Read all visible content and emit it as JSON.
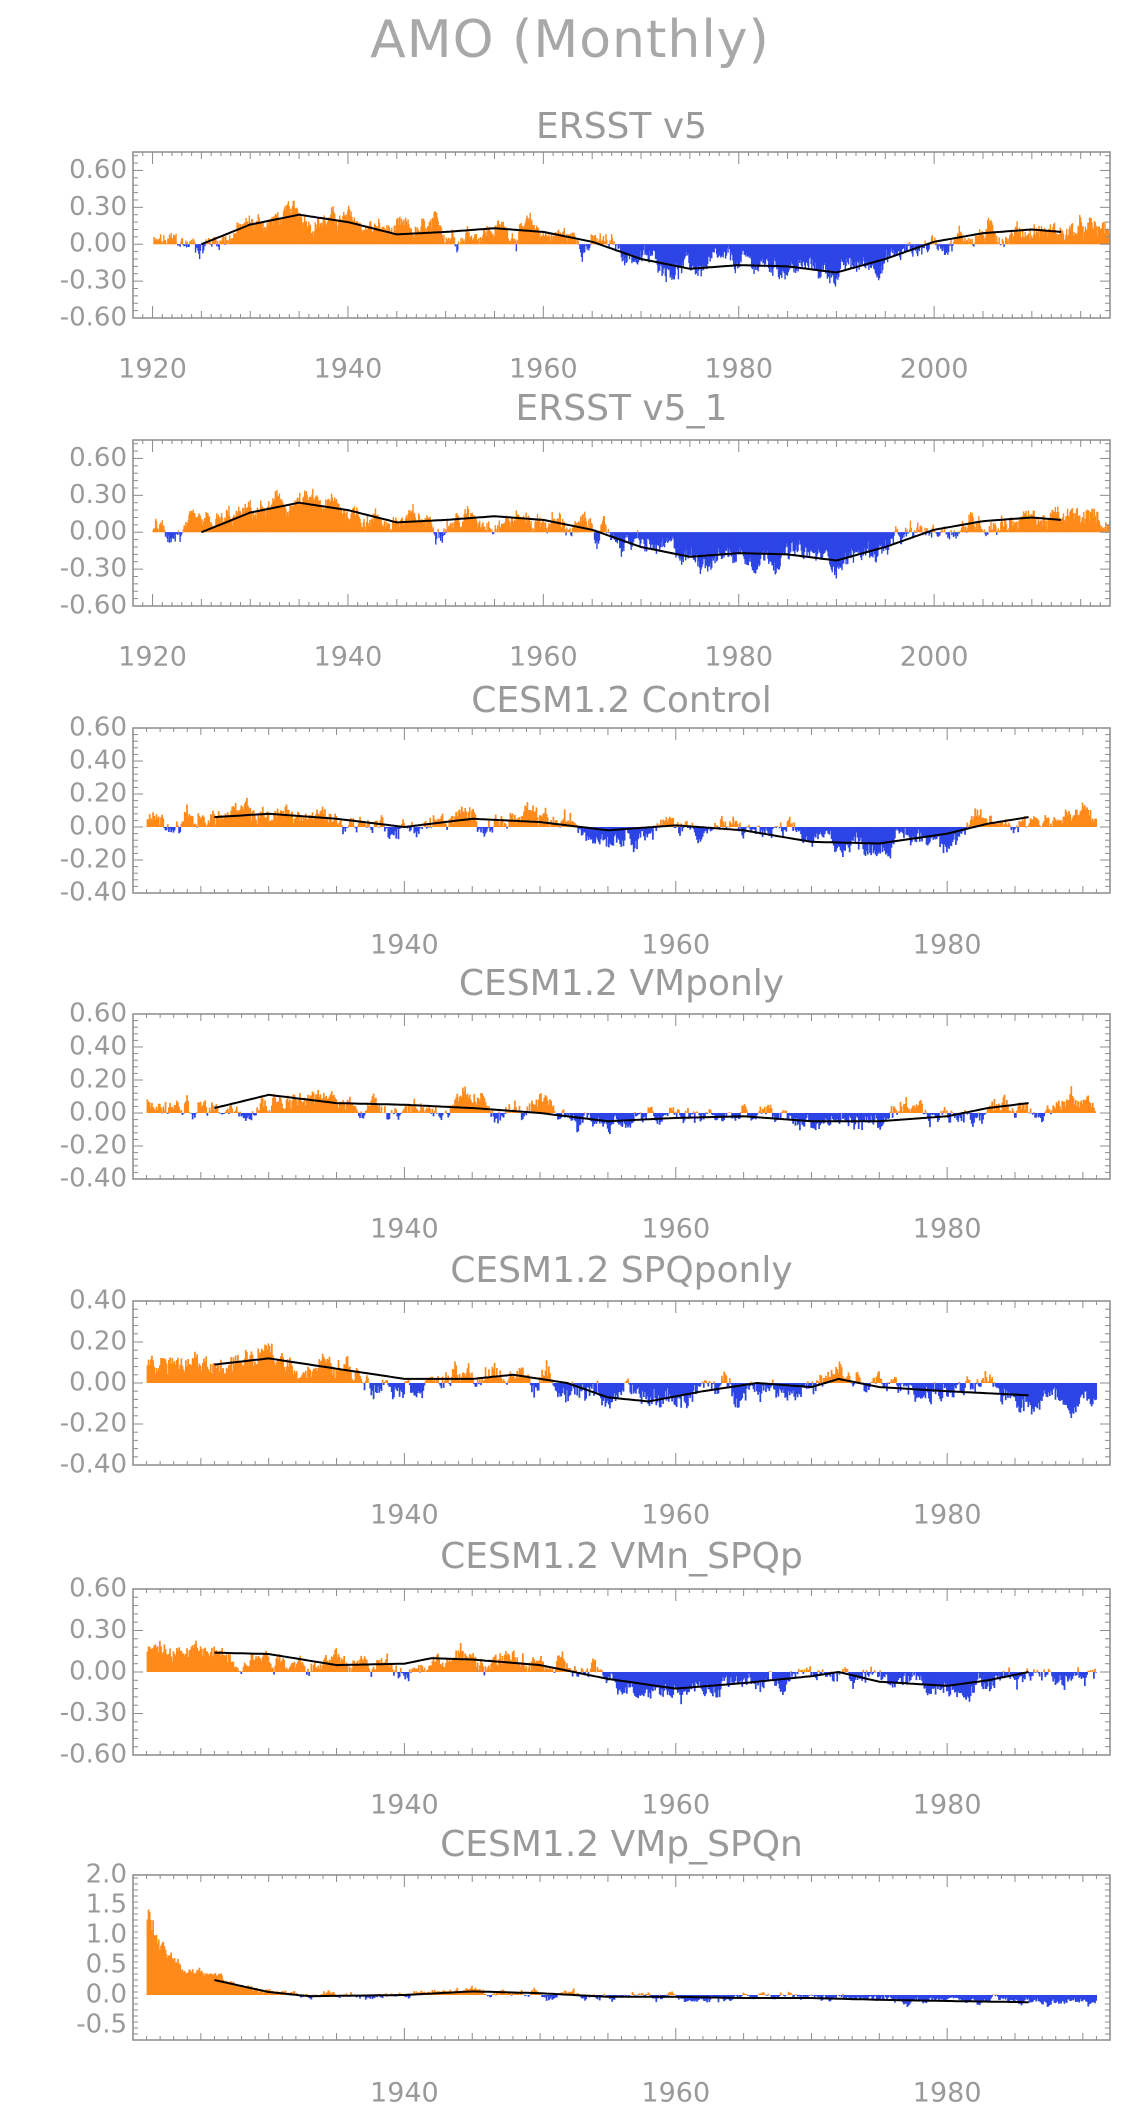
{
  "figure": {
    "title": "AMO (Monthly)"
  },
  "colors": {
    "positive": "#ff8a1a",
    "negative": "#2d45e6",
    "smooth": "#000000",
    "frame": "#8c8c8c",
    "text": "#9a9a9a"
  },
  "chart_data": [
    {
      "type": "bar",
      "title": "ERSST v5",
      "xlim": [
        1918,
        2018
      ],
      "ylim": [
        -0.6,
        0.75
      ],
      "yticks": [
        -0.6,
        -0.3,
        0.0,
        0.3,
        0.6
      ],
      "ytick_labels": [
        "-0.60",
        "-0.30",
        "0.00",
        "0.30",
        "0.60"
      ],
      "xticks": [
        1920,
        1940,
        1960,
        1980,
        2000
      ],
      "xtick_labels": [
        "1920",
        "1940",
        "1960",
        "1980",
        "2000"
      ],
      "series_start": 1920,
      "series_end": 2018,
      "smooth_range": [
        1925,
        2013
      ],
      "smooth": [
        [
          1925,
          0.0
        ],
        [
          1930,
          0.16
        ],
        [
          1935,
          0.24
        ],
        [
          1940,
          0.18
        ],
        [
          1945,
          0.08
        ],
        [
          1950,
          0.1
        ],
        [
          1955,
          0.13
        ],
        [
          1960,
          0.1
        ],
        [
          1965,
          0.02
        ],
        [
          1970,
          -0.12
        ],
        [
          1975,
          -0.2
        ],
        [
          1980,
          -0.17
        ],
        [
          1985,
          -0.18
        ],
        [
          1990,
          -0.23
        ],
        [
          1995,
          -0.12
        ],
        [
          2000,
          0.02
        ],
        [
          2005,
          0.09
        ],
        [
          2010,
          0.12
        ],
        [
          2013,
          0.1
        ]
      ],
      "noise": 0.16
    },
    {
      "type": "bar",
      "title": "ERSST v5_1",
      "xlim": [
        1918,
        2018
      ],
      "ylim": [
        -0.6,
        0.75
      ],
      "yticks": [
        -0.6,
        -0.3,
        0.0,
        0.3,
        0.6
      ],
      "ytick_labels": [
        "-0.60",
        "-0.30",
        "0.00",
        "0.30",
        "0.60"
      ],
      "xticks": [
        1920,
        1940,
        1960,
        1980,
        2000
      ],
      "xtick_labels": [
        "1920",
        "1940",
        "1960",
        "1980",
        "2000"
      ],
      "series_start": 1920,
      "series_end": 2018,
      "smooth_range": [
        1925,
        2013
      ],
      "smooth": [
        [
          1925,
          0.0
        ],
        [
          1930,
          0.16
        ],
        [
          1935,
          0.24
        ],
        [
          1940,
          0.18
        ],
        [
          1945,
          0.08
        ],
        [
          1950,
          0.1
        ],
        [
          1955,
          0.13
        ],
        [
          1960,
          0.1
        ],
        [
          1965,
          0.02
        ],
        [
          1970,
          -0.12
        ],
        [
          1975,
          -0.2
        ],
        [
          1980,
          -0.17
        ],
        [
          1985,
          -0.18
        ],
        [
          1990,
          -0.23
        ],
        [
          1995,
          -0.12
        ],
        [
          2000,
          0.02
        ],
        [
          2005,
          0.09
        ],
        [
          2010,
          0.12
        ],
        [
          2013,
          0.1
        ]
      ],
      "noise": 0.16
    },
    {
      "type": "bar",
      "title": "CESM1.2 Control",
      "xlim": [
        1920,
        1992
      ],
      "ylim": [
        -0.4,
        0.6
      ],
      "yticks": [
        -0.4,
        -0.2,
        0.0,
        0.2,
        0.4,
        0.6
      ],
      "ytick_labels": [
        "-0.40",
        "-0.20",
        "0.00",
        "0.20",
        "0.40",
        "0.60"
      ],
      "xticks": [
        1940,
        1960,
        1980
      ],
      "xtick_labels": [
        "1940",
        "1960",
        "1980"
      ],
      "series_start": 1921,
      "series_end": 1991,
      "smooth_range": [
        1926,
        1986
      ],
      "smooth": [
        [
          1926,
          0.06
        ],
        [
          1930,
          0.08
        ],
        [
          1935,
          0.05
        ],
        [
          1940,
          0.0
        ],
        [
          1945,
          0.05
        ],
        [
          1950,
          0.03
        ],
        [
          1955,
          -0.02
        ],
        [
          1960,
          0.01
        ],
        [
          1965,
          -0.02
        ],
        [
          1970,
          -0.09
        ],
        [
          1975,
          -0.1
        ],
        [
          1980,
          -0.04
        ],
        [
          1983,
          0.02
        ],
        [
          1986,
          0.06
        ]
      ],
      "noise": 0.12
    },
    {
      "type": "bar",
      "title": "CESM1.2 VMponly",
      "xlim": [
        1920,
        1992
      ],
      "ylim": [
        -0.4,
        0.6
      ],
      "yticks": [
        -0.4,
        -0.2,
        0.0,
        0.2,
        0.4,
        0.6
      ],
      "ytick_labels": [
        "-0.40",
        "-0.20",
        "0.00",
        "0.20",
        "0.40",
        "0.60"
      ],
      "xticks": [
        1940,
        1960,
        1980
      ],
      "xtick_labels": [
        "1940",
        "1960",
        "1980"
      ],
      "series_start": 1921,
      "series_end": 1991,
      "smooth_range": [
        1926,
        1986
      ],
      "smooth": [
        [
          1926,
          0.03
        ],
        [
          1930,
          0.11
        ],
        [
          1935,
          0.06
        ],
        [
          1940,
          0.05
        ],
        [
          1945,
          0.03
        ],
        [
          1950,
          0.0
        ],
        [
          1955,
          -0.05
        ],
        [
          1960,
          -0.03
        ],
        [
          1965,
          -0.02
        ],
        [
          1970,
          -0.05
        ],
        [
          1975,
          -0.05
        ],
        [
          1980,
          -0.02
        ],
        [
          1983,
          0.03
        ],
        [
          1986,
          0.06
        ]
      ],
      "noise": 0.12
    },
    {
      "type": "bar",
      "title": "CESM1.2 SPQponly",
      "xlim": [
        1920,
        1992
      ],
      "ylim": [
        -0.4,
        0.4
      ],
      "yticks": [
        -0.4,
        -0.2,
        0.0,
        0.2,
        0.4
      ],
      "ytick_labels": [
        "-0.40",
        "-0.20",
        "0.00",
        "0.20",
        "0.40"
      ],
      "xticks": [
        1940,
        1960,
        1980
      ],
      "xtick_labels": [
        "1940",
        "1960",
        "1980"
      ],
      "series_start": 1921,
      "series_end": 1991,
      "smooth_range": [
        1926,
        1986
      ],
      "smooth": [
        [
          1926,
          0.09
        ],
        [
          1930,
          0.12
        ],
        [
          1935,
          0.07
        ],
        [
          1940,
          0.02
        ],
        [
          1945,
          0.02
        ],
        [
          1948,
          0.04
        ],
        [
          1952,
          0.0
        ],
        [
          1955,
          -0.07
        ],
        [
          1958,
          -0.09
        ],
        [
          1962,
          -0.04
        ],
        [
          1966,
          0.0
        ],
        [
          1970,
          -0.02
        ],
        [
          1972,
          0.02
        ],
        [
          1975,
          -0.02
        ],
        [
          1980,
          -0.04
        ],
        [
          1986,
          -0.06
        ]
      ],
      "noise": 0.11
    },
    {
      "type": "bar",
      "title": "CESM1.2 VMn_SPQp",
      "xlim": [
        1920,
        1992
      ],
      "ylim": [
        -0.6,
        0.6
      ],
      "yticks": [
        -0.6,
        -0.3,
        0.0,
        0.3,
        0.6
      ],
      "ytick_labels": [
        "-0.60",
        "-0.30",
        "0.00",
        "0.30",
        "0.60"
      ],
      "xticks": [
        1940,
        1960,
        1980
      ],
      "xtick_labels": [
        "1940",
        "1960",
        "1980"
      ],
      "series_start": 1921,
      "series_end": 1991,
      "smooth_range": [
        1926,
        1986
      ],
      "smooth": [
        [
          1926,
          0.14
        ],
        [
          1930,
          0.13
        ],
        [
          1935,
          0.05
        ],
        [
          1940,
          0.06
        ],
        [
          1942,
          0.1
        ],
        [
          1945,
          0.09
        ],
        [
          1950,
          0.05
        ],
        [
          1955,
          -0.05
        ],
        [
          1960,
          -0.12
        ],
        [
          1965,
          -0.08
        ],
        [
          1970,
          -0.03
        ],
        [
          1972,
          0.0
        ],
        [
          1975,
          -0.07
        ],
        [
          1980,
          -0.1
        ],
        [
          1983,
          -0.06
        ],
        [
          1986,
          0.0
        ]
      ],
      "noise": 0.14
    },
    {
      "type": "bar",
      "title": "CESM1.2 VMp_SPQn",
      "xlim": [
        1920,
        1992
      ],
      "ylim": [
        -0.75,
        2.0
      ],
      "yticks": [
        -0.5,
        0.0,
        0.5,
        1.0,
        1.5,
        2.0
      ],
      "ytick_labels": [
        "-0.5",
        "0.0",
        "0.5",
        "1.0",
        "1.5",
        "2.0"
      ],
      "xticks": [
        1940,
        1960,
        1980
      ],
      "xtick_labels": [
        "1940",
        "1960",
        "1980"
      ],
      "series_start": 1921,
      "series_end": 1991,
      "smooth_range": [
        1926,
        1986
      ],
      "smooth": [
        [
          1926,
          0.25
        ],
        [
          1928,
          0.15
        ],
        [
          1930,
          0.05
        ],
        [
          1933,
          -0.02
        ],
        [
          1940,
          0.0
        ],
        [
          1945,
          0.06
        ],
        [
          1950,
          0.03
        ],
        [
          1955,
          -0.03
        ],
        [
          1960,
          -0.03
        ],
        [
          1965,
          -0.05
        ],
        [
          1970,
          -0.05
        ],
        [
          1975,
          -0.08
        ],
        [
          1980,
          -0.1
        ],
        [
          1986,
          -0.12
        ]
      ],
      "noise": 0.12,
      "initial_spike": 1.3
    }
  ]
}
